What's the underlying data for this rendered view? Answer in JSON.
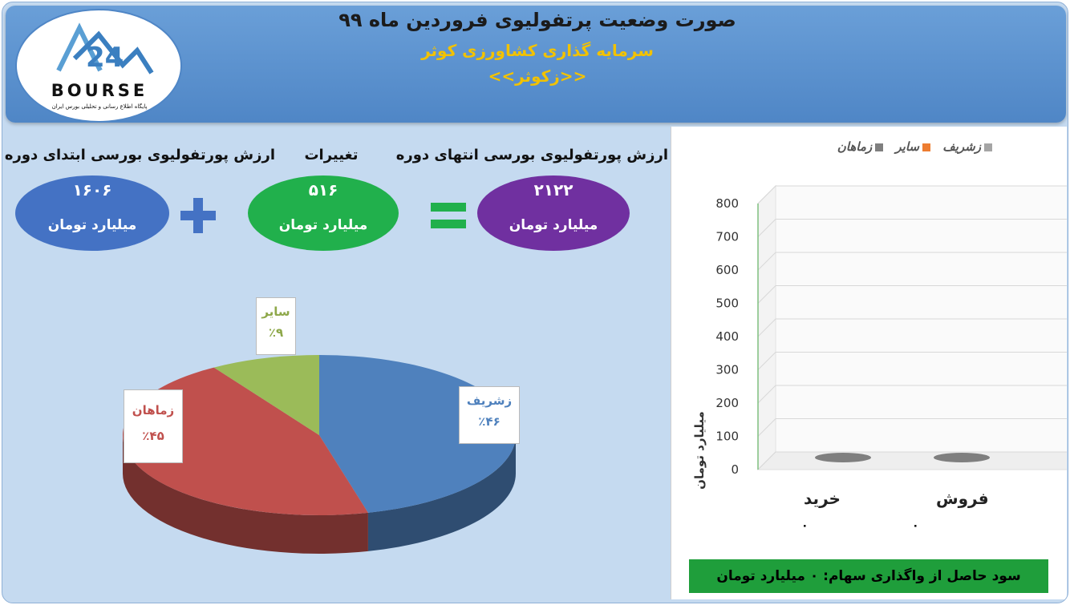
{
  "header": {
    "title": "صورت وضعیت پرتفولیوی فروردین ماه ۹۹",
    "company": "سرمایه گذاری کشاورزی کوثر",
    "symbol": "<<زکوثر>>"
  },
  "logo": {
    "word": "BOURSE",
    "tagline": "پایگاه اطلاع رسانی و تحلیلی بورس ایران"
  },
  "summary": {
    "start": {
      "label": "ارزش پورتفولیوی بورسی ابتدای دوره",
      "value": "۱۶۰۶",
      "unit": "میلیارد تومان",
      "color": "#4472c4"
    },
    "change": {
      "label": "تغییرات",
      "value": "۵۱۶",
      "unit": "میلیارد تومان",
      "color": "#21b04c"
    },
    "end": {
      "label": "ارزش پورتفولیوی بورسی انتهای دوره",
      "value": "۲۱۲۲",
      "unit": "میلیارد تومان",
      "color": "#7030a0"
    },
    "plus_color": "#4472c4",
    "equals_color": "#21b04c"
  },
  "chart_data": [
    {
      "type": "pie",
      "labels": [
        "زشریف",
        "زماهان",
        "سایر"
      ],
      "values": [
        46,
        45,
        9
      ],
      "value_labels": [
        "٪۴۶",
        "٪۴۵",
        "٪۹"
      ],
      "colors": [
        "#4f81bd",
        "#c0504d",
        "#9bbb59"
      ],
      "style": "3d"
    },
    {
      "type": "bar",
      "categories": [
        "خرید",
        "فروش"
      ],
      "series": [
        {
          "name": "زماهان",
          "values": [
            0,
            0
          ],
          "color": "#7f7f7f"
        },
        {
          "name": "سایر",
          "values": [
            0,
            0
          ],
          "color": "#ed7d31"
        },
        {
          "name": "زشریف",
          "values": [
            0,
            0
          ],
          "color": "#a5a5a5"
        }
      ],
      "data_labels": [
        "۰",
        "۰"
      ],
      "ylabel": "میلیارد تومان",
      "ylim": [
        0,
        800
      ],
      "yticks": [
        "0",
        "100",
        "200",
        "300",
        "400",
        "500",
        "600",
        "700",
        "800"
      ],
      "legend": "top",
      "grid": true,
      "style": "3d"
    }
  ],
  "profit": {
    "text": "سود حاصل از واگذاری سهام: ۰ میلیارد تومان"
  }
}
